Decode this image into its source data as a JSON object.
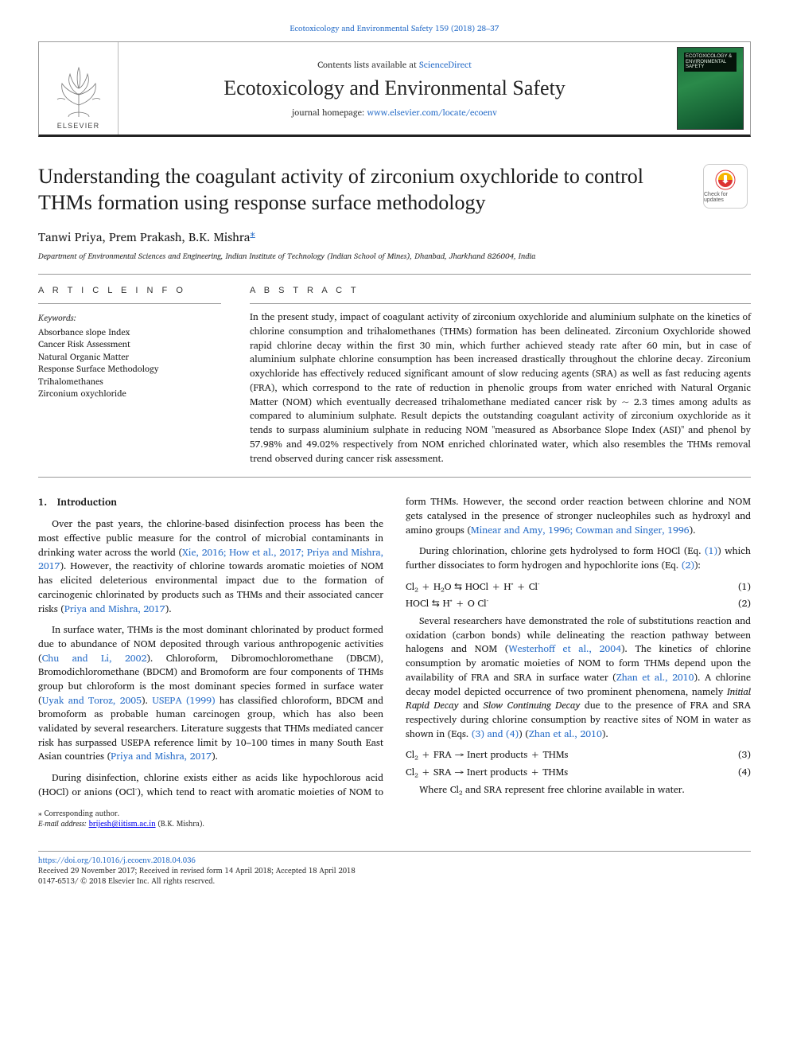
{
  "journal_ref": "Ecotoxicology and Environmental Safety 159 (2018) 28–37",
  "header": {
    "contents_prefix": "Contents lists available at ",
    "contents_link": "ScienceDirect",
    "journal_name": "Ecotoxicology and Environmental Safety",
    "homepage_prefix": "journal homepage: ",
    "homepage_link": "www.elsevier.com/locate/ecoenv",
    "publisher": "ELSEVIER",
    "cover_title": "ECOTOXICOLOGY & ENVIRONMENTAL SAFETY"
  },
  "check_updates_label": "Check for updates",
  "title": "Understanding the coagulant activity of zirconium oxychloride to control THMs formation using response surface methodology",
  "authors": "Tanwi Priya, Prem Prakash, B.K. Mishra",
  "corr_mark": "⁎",
  "affiliation": "Department of Environmental Sciences and Engineering, Indian Institute of Technology (Indian School of Mines), Dhanbad, Jharkhand 826004, India",
  "article_info_head": "A R T I C L E  I N F O",
  "abstract_head": "A B S T R A C T",
  "keywords_label": "Keywords:",
  "keywords": [
    "Absorbance slope Index",
    "Cancer Risk Assessment",
    "Natural Organic Matter",
    "Response Surface Methodology",
    "Trihalomethanes",
    "Zirconium oxychloride"
  ],
  "abstract": "In the present study, impact of coagulant activity of zirconium oxychloride and aluminium sulphate on the kinetics of chlorine consumption and trihalomethanes (THMs) formation has been delineated. Zirconium Oxychloride showed rapid chlorine decay within the first 30 min, which further achieved steady rate after 60 min, but in case of aluminium sulphate chlorine consumption has been increased drastically throughout the chlorine decay. Zirconium oxychloride has effectively reduced significant amount of slow reducing agents (SRA) as well as fast reducing agents (FRA), which correspond to the rate of reduction in phenolic groups from water enriched with Natural Organic Matter (NOM) which eventually decreased trihalomethane mediated cancer risk by ~ 2.3 times among adults as compared to aluminium sulphate. Result depicts the outstanding coagulant activity of zirconium oxychloride as it tends to surpass aluminium sulphate in reducing NOM \"measured as Absorbance Slope Index (ASI)\" and phenol by 57.98% and 49.02% respectively from NOM enriched chlorinated water, which also resembles the THMs removal trend observed during cancer risk assessment.",
  "body": {
    "sec1_head": "1. Introduction",
    "p1_a": "Over the past years, the chlorine-based disinfection process has been the most effective public measure for the control of microbial contaminants in drinking water across the world (",
    "p1_ref1": "Xie, 2016; How et al., 2017; Priya and Mishra, 2017",
    "p1_b": "). However, the reactivity of chlorine towards aromatic moieties of NOM has elicited deleterious environmental impact due to the formation of carcinogenic chlorinated by products such as THMs and their associated cancer risks (",
    "p1_ref2": "Priya and Mishra, 2017",
    "p1_c": ").",
    "p2_a": "In surface water, THMs is the most dominant chlorinated by product formed due to abundance of NOM deposited through various anthropogenic activities (",
    "p2_ref1": "Chu and Li, 2002",
    "p2_b": "). Chloroform, Dibromochloromethane (DBCM), Bromodichloromethane (BDCM) and Bromoform are four components of THMs group but chloroform is the most dominant species formed in surface water (",
    "p2_ref2": "Uyak and Toroz, 2005",
    "p2_c": "). ",
    "p2_ref3": "USEPA (1999)",
    "p2_d": " has classified chloroform, BDCM and bromoform as probable human carcinogen group, which has also been validated by several researchers. Literature suggests that THMs mediated cancer risk has surpassed USEPA reference limit by 10–100 times in many South East Asian countries (",
    "p2_ref4": "Priya and Mishra, 2017",
    "p2_e": ").",
    "p3_a": "During disinfection, chlorine exists either as acids like hypochlorous acid (HOCl) or anions (OCl⁻), which tend to react with aromatic moieties of NOM to form THMs. However, the second order reaction ",
    "p3_b": "between chlorine and NOM gets catalysed in the presence of stronger nucleophiles such as hydroxyl and amino groups (",
    "p3_ref1": "Minear and Amy, 1996; Cowman and Singer, 1996",
    "p3_c": ").",
    "p4_a": "During chlorination, chlorine gets hydrolysed to form HOCl (Eq. ",
    "p4_ref1": "(1)",
    "p4_b": ") which further dissociates to form hydrogen and hypochlorite ions (Eq. ",
    "p4_ref2": "(2)",
    "p4_c": "):",
    "eq1_lhs": "Cl₂ + H₂O ⇆ HOCl + H⁺ + Cl⁻",
    "eq1_num": "(1)",
    "eq2_lhs": "HOCl ⇆ H⁺ + O Cl⁻",
    "eq2_num": "(2)",
    "p5_a": "Several researchers have demonstrated the role of substitutions reaction and oxidation (carbon bonds) while delineating the reaction pathway between halogens and NOM (",
    "p5_ref1": "Westerhoff et al., 2004",
    "p5_b": "). The kinetics of chlorine consumption by aromatic moieties of NOM to form THMs depend upon the availability of FRA and SRA in surface water (",
    "p5_ref2": "Zhan et al., 2010",
    "p5_c": "). A chlorine decay model depicted occurrence of two prominent phenomena, namely ",
    "p5_em1": "Initial Rapid Decay",
    "p5_d": " and ",
    "p5_em2": "Slow Continuing Decay",
    "p5_e": " due to the presence of FRA and SRA respectively during chlorine consumption by reactive sites of NOM in water as shown in (Eqs. ",
    "p5_ref3": "(3) and (4)",
    "p5_f": ") (",
    "p5_ref4": "Zhan et al., 2010",
    "p5_g": ").",
    "eq3_lhs": "Cl₂ + FRA → Inert products + THMs",
    "eq3_num": "(3)",
    "eq4_lhs": "Cl₂ + SRA → Inert products + THMs",
    "eq4_num": "(4)",
    "p6": "Where Cl₂ and SRA represent free chlorine available in water."
  },
  "footer": {
    "corr_label": "⁎ Corresponding author.",
    "email_label": "E-mail address: ",
    "email": "brijesh@iitism.ac.in",
    "email_suffix": " (B.K. Mishra).",
    "doi": "https://doi.org/10.1016/j.ecoenv.2018.04.036",
    "received": "Received 29 November 2017; Received in revised form 14 April 2018; Accepted 18 April 2018",
    "copyright": "0147-6513/ © 2018 Elsevier Inc. All rights reserved."
  }
}
